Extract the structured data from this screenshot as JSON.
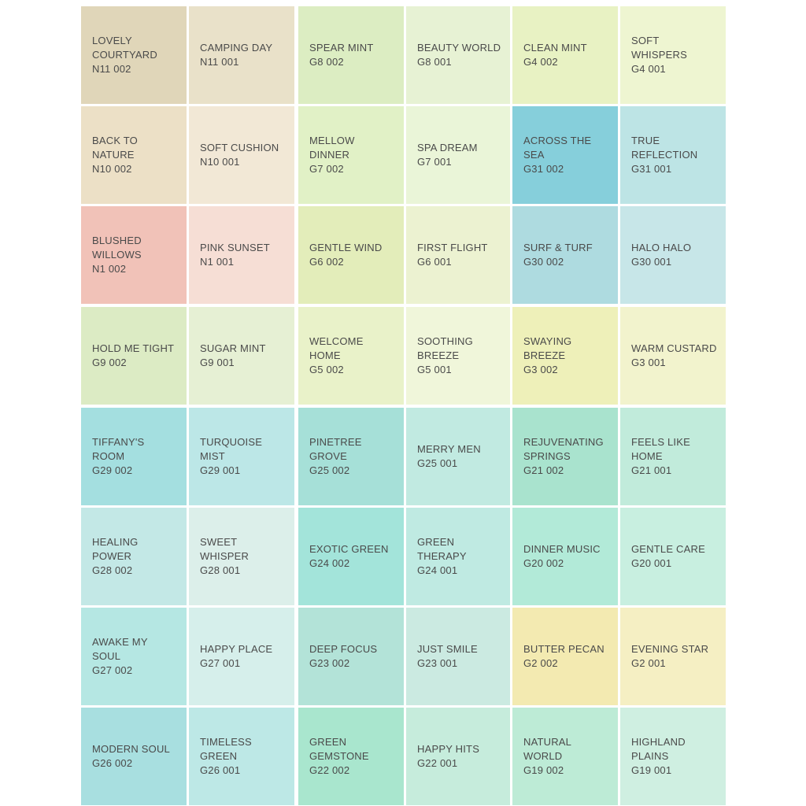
{
  "columns": [
    [
      {
        "name": "LOVELY\nCOURTYARD",
        "code": "N11 002",
        "color": "#e0d6b9"
      },
      {
        "name": "BACK TO\nNATURE",
        "code": "N10 002",
        "color": "#ece0c6"
      },
      {
        "name": "BLUSHED\nWILLOWS",
        "code": "N1 002",
        "color": "#f1c2b8"
      },
      {
        "name": "HOLD ME TIGHT",
        "code": "G9 002",
        "color": "#dcebc4"
      },
      {
        "name": "TIFFANY'S\nROOM",
        "code": "G29 002",
        "color": "#a4dfe0"
      },
      {
        "name": "HEALING\nPOWER",
        "code": "G28 002",
        "color": "#c3e8e6"
      },
      {
        "name": "AWAKE MY\nSOUL",
        "code": "G27 002",
        "color": "#b5e7e3"
      },
      {
        "name": "MODERN SOUL",
        "code": "G26 002",
        "color": "#a8dfe0"
      }
    ],
    [
      {
        "name": "CAMPING DAY",
        "code": "N11 001",
        "color": "#e9e1c9"
      },
      {
        "name": "SOFT CUSHION",
        "code": "N10 001",
        "color": "#f2e8d6"
      },
      {
        "name": "PINK SUNSET",
        "code": "N1 001",
        "color": "#f6ded5"
      },
      {
        "name": "SUGAR MINT",
        "code": "G9 001",
        "color": "#e6f0d4"
      },
      {
        "name": "TURQUOISE\nMIST",
        "code": "G29 001",
        "color": "#bce7e7"
      },
      {
        "name": "SWEET\nWHISPER",
        "code": "G28 001",
        "color": "#dcefea"
      },
      {
        "name": "HAPPY PLACE",
        "code": "G27 001",
        "color": "#d6efeb"
      },
      {
        "name": "TIMELESS\nGREEN",
        "code": "G26 001",
        "color": "#bde8e6"
      }
    ],
    [
      {
        "name": "SPEAR MINT",
        "code": "G8 002",
        "color": "#dcedc2"
      },
      {
        "name": "MELLOW\nDINNER",
        "code": "G7 002",
        "color": "#e1f1c6"
      },
      {
        "name": "GENTLE WIND",
        "code": "G6 002",
        "color": "#e3edba"
      },
      {
        "name": "WELCOME\nHOME",
        "code": "G5 002",
        "color": "#e9f2c9"
      },
      {
        "name": "PINETREE\nGROVE",
        "code": "G25 002",
        "color": "#a6e0d8"
      },
      {
        "name": "EXOTIC GREEN",
        "code": "G24 002",
        "color": "#a3e4da"
      },
      {
        "name": "DEEP FOCUS",
        "code": "G23 002",
        "color": "#b3e3d8"
      },
      {
        "name": "GREEN\nGEMSTONE",
        "code": "G22 002",
        "color": "#a9e6ce"
      }
    ],
    [
      {
        "name": "BEAUTY WORLD",
        "code": "G8 001",
        "color": "#e7f2d4"
      },
      {
        "name": "SPA DREAM",
        "code": "G7 001",
        "color": "#eaf5d8"
      },
      {
        "name": "FIRST FLIGHT",
        "code": "G6 001",
        "color": "#ecf2d1"
      },
      {
        "name": "SOOTHING\nBREEZE",
        "code": "G5 001",
        "color": "#f0f6da"
      },
      {
        "name": "MERRY MEN",
        "code": "G25 001",
        "color": "#c1eae1"
      },
      {
        "name": "GREEN\nTHERAPY",
        "code": "G24 001",
        "color": "#bfeae2"
      },
      {
        "name": "JUST SMILE",
        "code": "G23 001",
        "color": "#cbeae1"
      },
      {
        "name": "HAPPY HITS",
        "code": "G22 001",
        "color": "#c6ecdc"
      }
    ],
    [
      {
        "name": "CLEAN MINT",
        "code": "G4 002",
        "color": "#e8f2c3"
      },
      {
        "name": "ACROSS THE\nSEA",
        "code": "G31 002",
        "color": "#86cfdb"
      },
      {
        "name": "SURF & TURF",
        "code": "G30 002",
        "color": "#aedbe0"
      },
      {
        "name": "SWAYING\nBREEZE",
        "code": "G3 002",
        "color": "#eef0b9"
      },
      {
        "name": "REJUVENATING\nSPRINGS",
        "code": "G21 002",
        "color": "#a9e3ce"
      },
      {
        "name": "DINNER MUSIC",
        "code": "G20 002",
        "color": "#b2ead8"
      },
      {
        "name": "BUTTER PECAN",
        "code": "G2 002",
        "color": "#f3eab1"
      },
      {
        "name": "NATURAL\nWORLD",
        "code": "G19 002",
        "color": "#bdebd6"
      }
    ],
    [
      {
        "name": "SOFT\nWHISPERS",
        "code": "G4 001",
        "color": "#eef5d1"
      },
      {
        "name": "TRUE\nREFLECTION",
        "code": "G31 001",
        "color": "#bde4e5"
      },
      {
        "name": "HALO HALO",
        "code": "G30 001",
        "color": "#c7e6e8"
      },
      {
        "name": "WARM CUSTARD",
        "code": "G3 001",
        "color": "#f2f3cd"
      },
      {
        "name": "FEELS LIKE\nHOME",
        "code": "G21 001",
        "color": "#c1ebdb"
      },
      {
        "name": "GENTLE CARE",
        "code": "G20 001",
        "color": "#c8efe0"
      },
      {
        "name": "EVENING STAR",
        "code": "G2 001",
        "color": "#f5efc3"
      },
      {
        "name": "HIGHLAND\nPLAINS",
        "code": "G19 001",
        "color": "#cfefe1"
      }
    ]
  ]
}
